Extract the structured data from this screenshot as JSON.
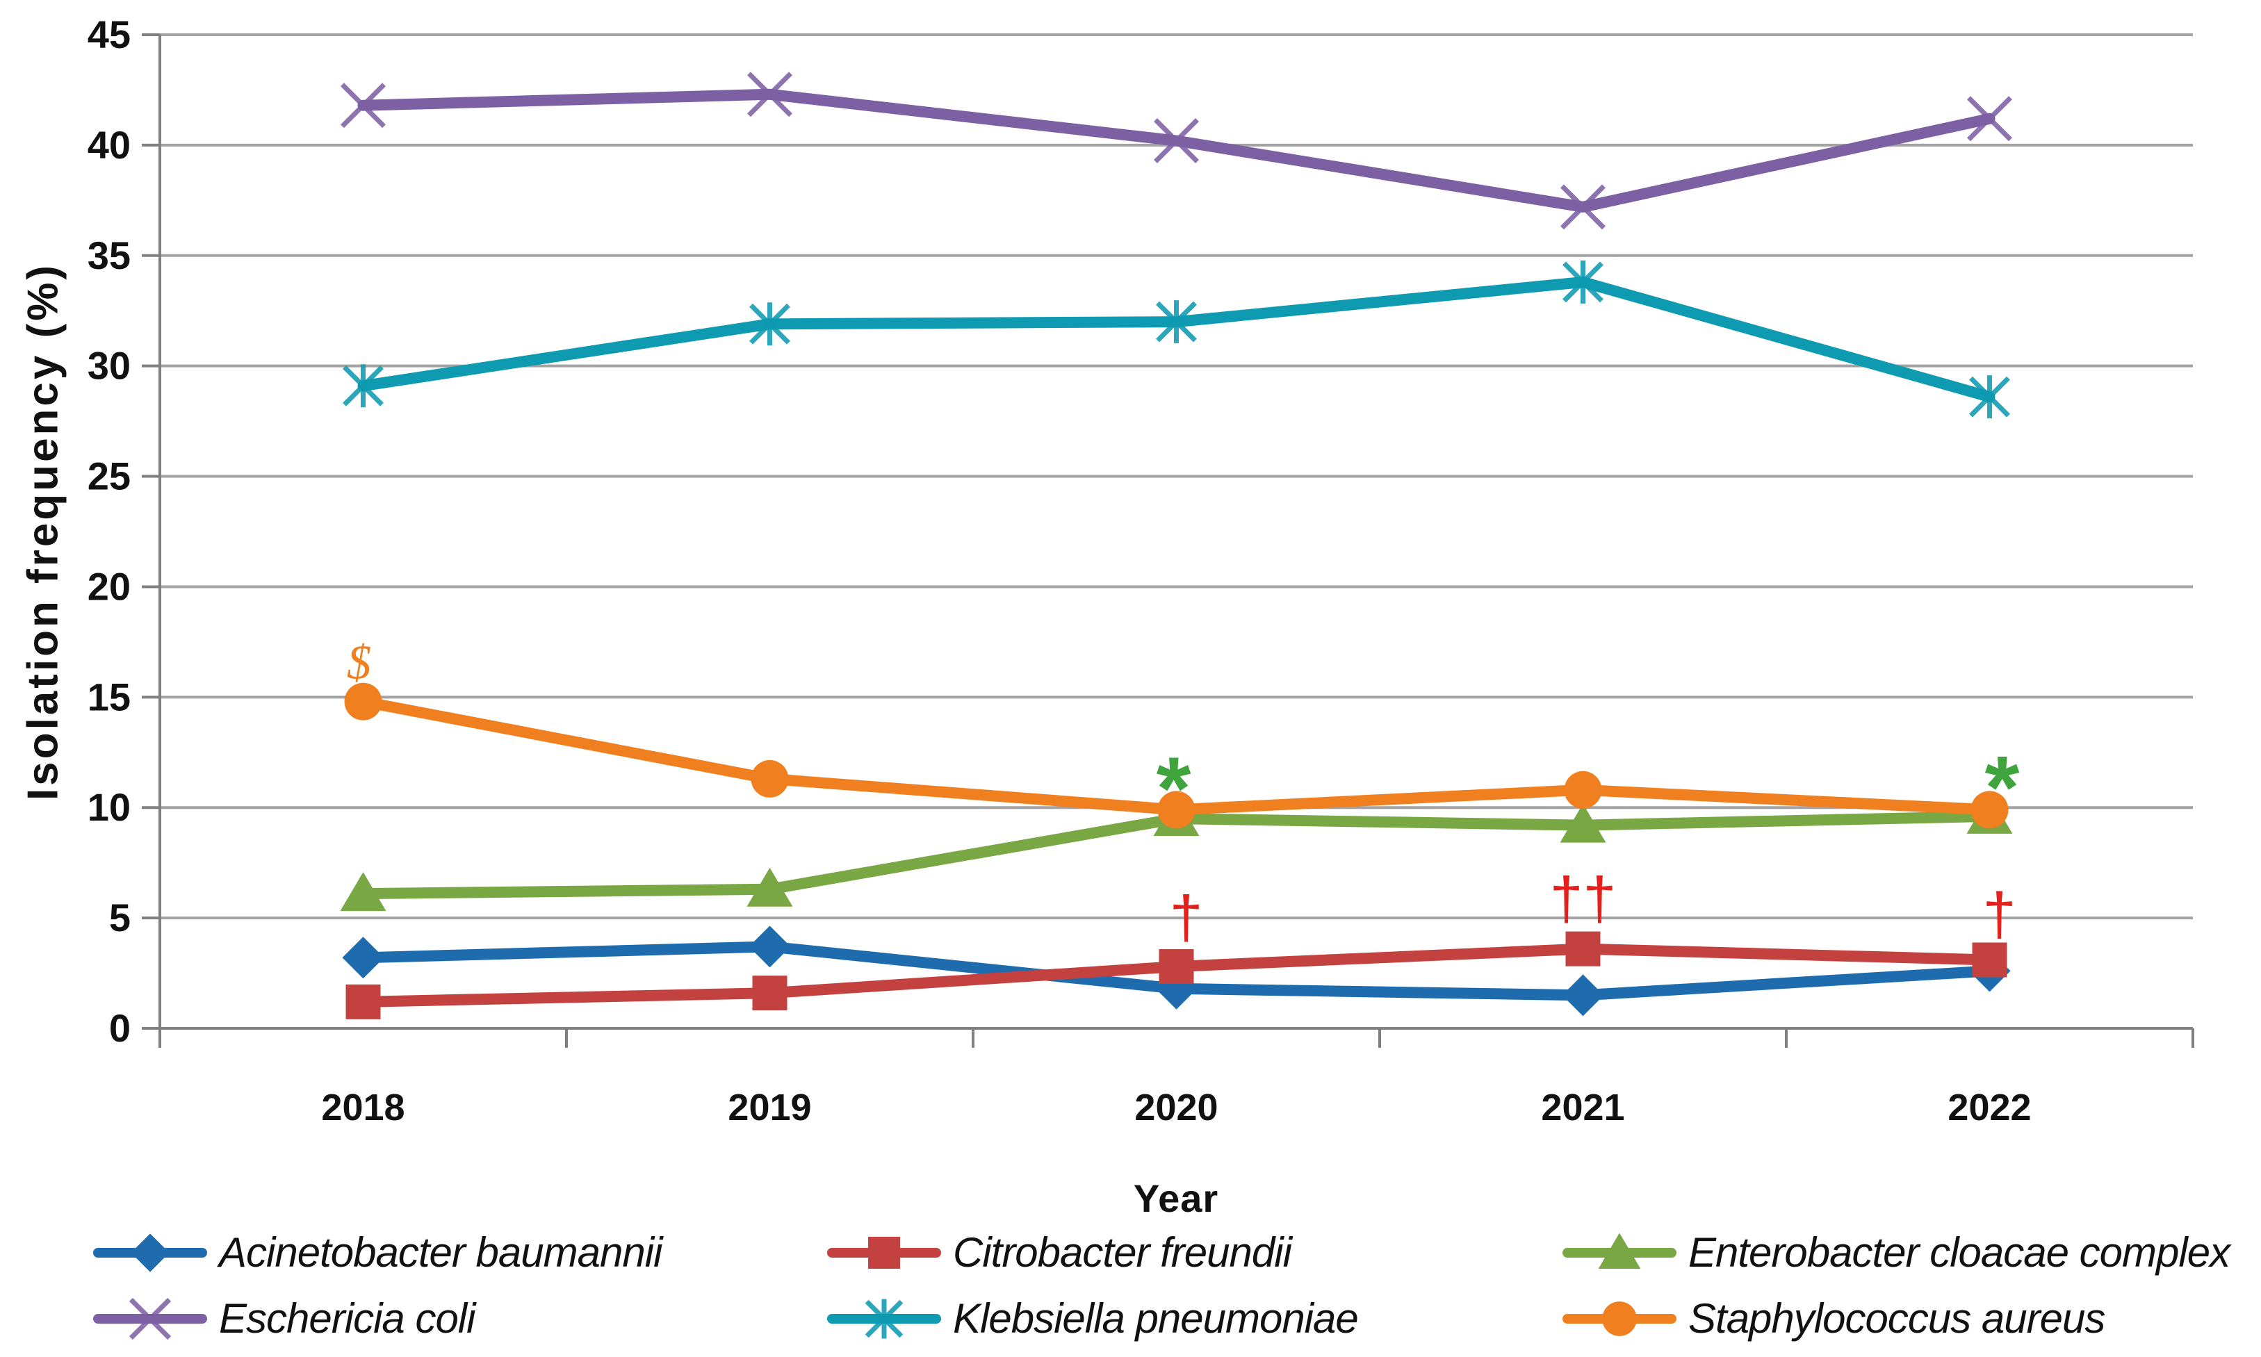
{
  "chart_data": {
    "type": "line",
    "title": "",
    "xlabel": "Year",
    "ylabel": "Isolation frequency (%)",
    "categories": [
      "2018",
      "2019",
      "2020",
      "2021",
      "2022"
    ],
    "ylim": [
      0,
      45
    ],
    "ytick_interval": 5,
    "ytick_labels": [
      "0",
      "5",
      "10",
      "15",
      "20",
      "25",
      "30",
      "35",
      "40",
      "45"
    ],
    "grid": "horizontal",
    "legend_position": "bottom",
    "series": [
      {
        "name": "Acinetobacter baumannii",
        "color": "#1E6CAE",
        "marker": "diamond",
        "values": [
          3.2,
          3.7,
          1.8,
          1.5,
          2.6
        ]
      },
      {
        "name": "Citrobacter freundii",
        "color": "#C3423F",
        "marker": "square",
        "values": [
          1.2,
          1.6,
          2.8,
          3.6,
          3.1
        ]
      },
      {
        "name": "Enterobacter cloacae complex",
        "color": "#78A743",
        "marker": "triangle",
        "values": [
          6.1,
          6.3,
          9.5,
          9.2,
          9.6
        ]
      },
      {
        "name": "Eschericia coli",
        "color": "#7D60A4",
        "marker": "x",
        "values": [
          41.8,
          42.3,
          40.2,
          37.2,
          41.2
        ]
      },
      {
        "name": "Klebsiella pneumoniae",
        "color": "#0E9AB1",
        "marker": "asterisk",
        "values": [
          29.1,
          31.9,
          32.0,
          33.8,
          28.6
        ]
      },
      {
        "name": "Staphylococcus aureus",
        "color": "#F0801F",
        "marker": "circle",
        "values": [
          14.8,
          11.3,
          9.9,
          10.8,
          9.9
        ]
      }
    ],
    "annotations": [
      {
        "text": "$",
        "kind": "dollar",
        "color": "#F0801F",
        "category_index": 0,
        "y": 16.6,
        "dx": -6
      },
      {
        "text": "*",
        "kind": "asterisk",
        "color": "#3EA43B",
        "category_index": 2,
        "y": 11.5,
        "dx": -4
      },
      {
        "text": "†",
        "kind": "dagger",
        "color": "#E4201C",
        "category_index": 2,
        "y": 5.3,
        "dx": 14
      },
      {
        "text": "††",
        "kind": "dagger",
        "color": "#E4201C",
        "category_index": 3,
        "y": 6.15,
        "dx": 0
      },
      {
        "text": "*",
        "kind": "asterisk",
        "color": "#3EA43B",
        "category_index": 4,
        "y": 11.55,
        "dx": 18
      },
      {
        "text": "†",
        "kind": "dagger",
        "color": "#E4201C",
        "category_index": 4,
        "y": 5.45,
        "dx": 14
      }
    ],
    "style": {
      "gridline_color": "#A3A3A3",
      "axis_color": "#808080",
      "text_color": "#111111",
      "line_width": 16
    }
  }
}
